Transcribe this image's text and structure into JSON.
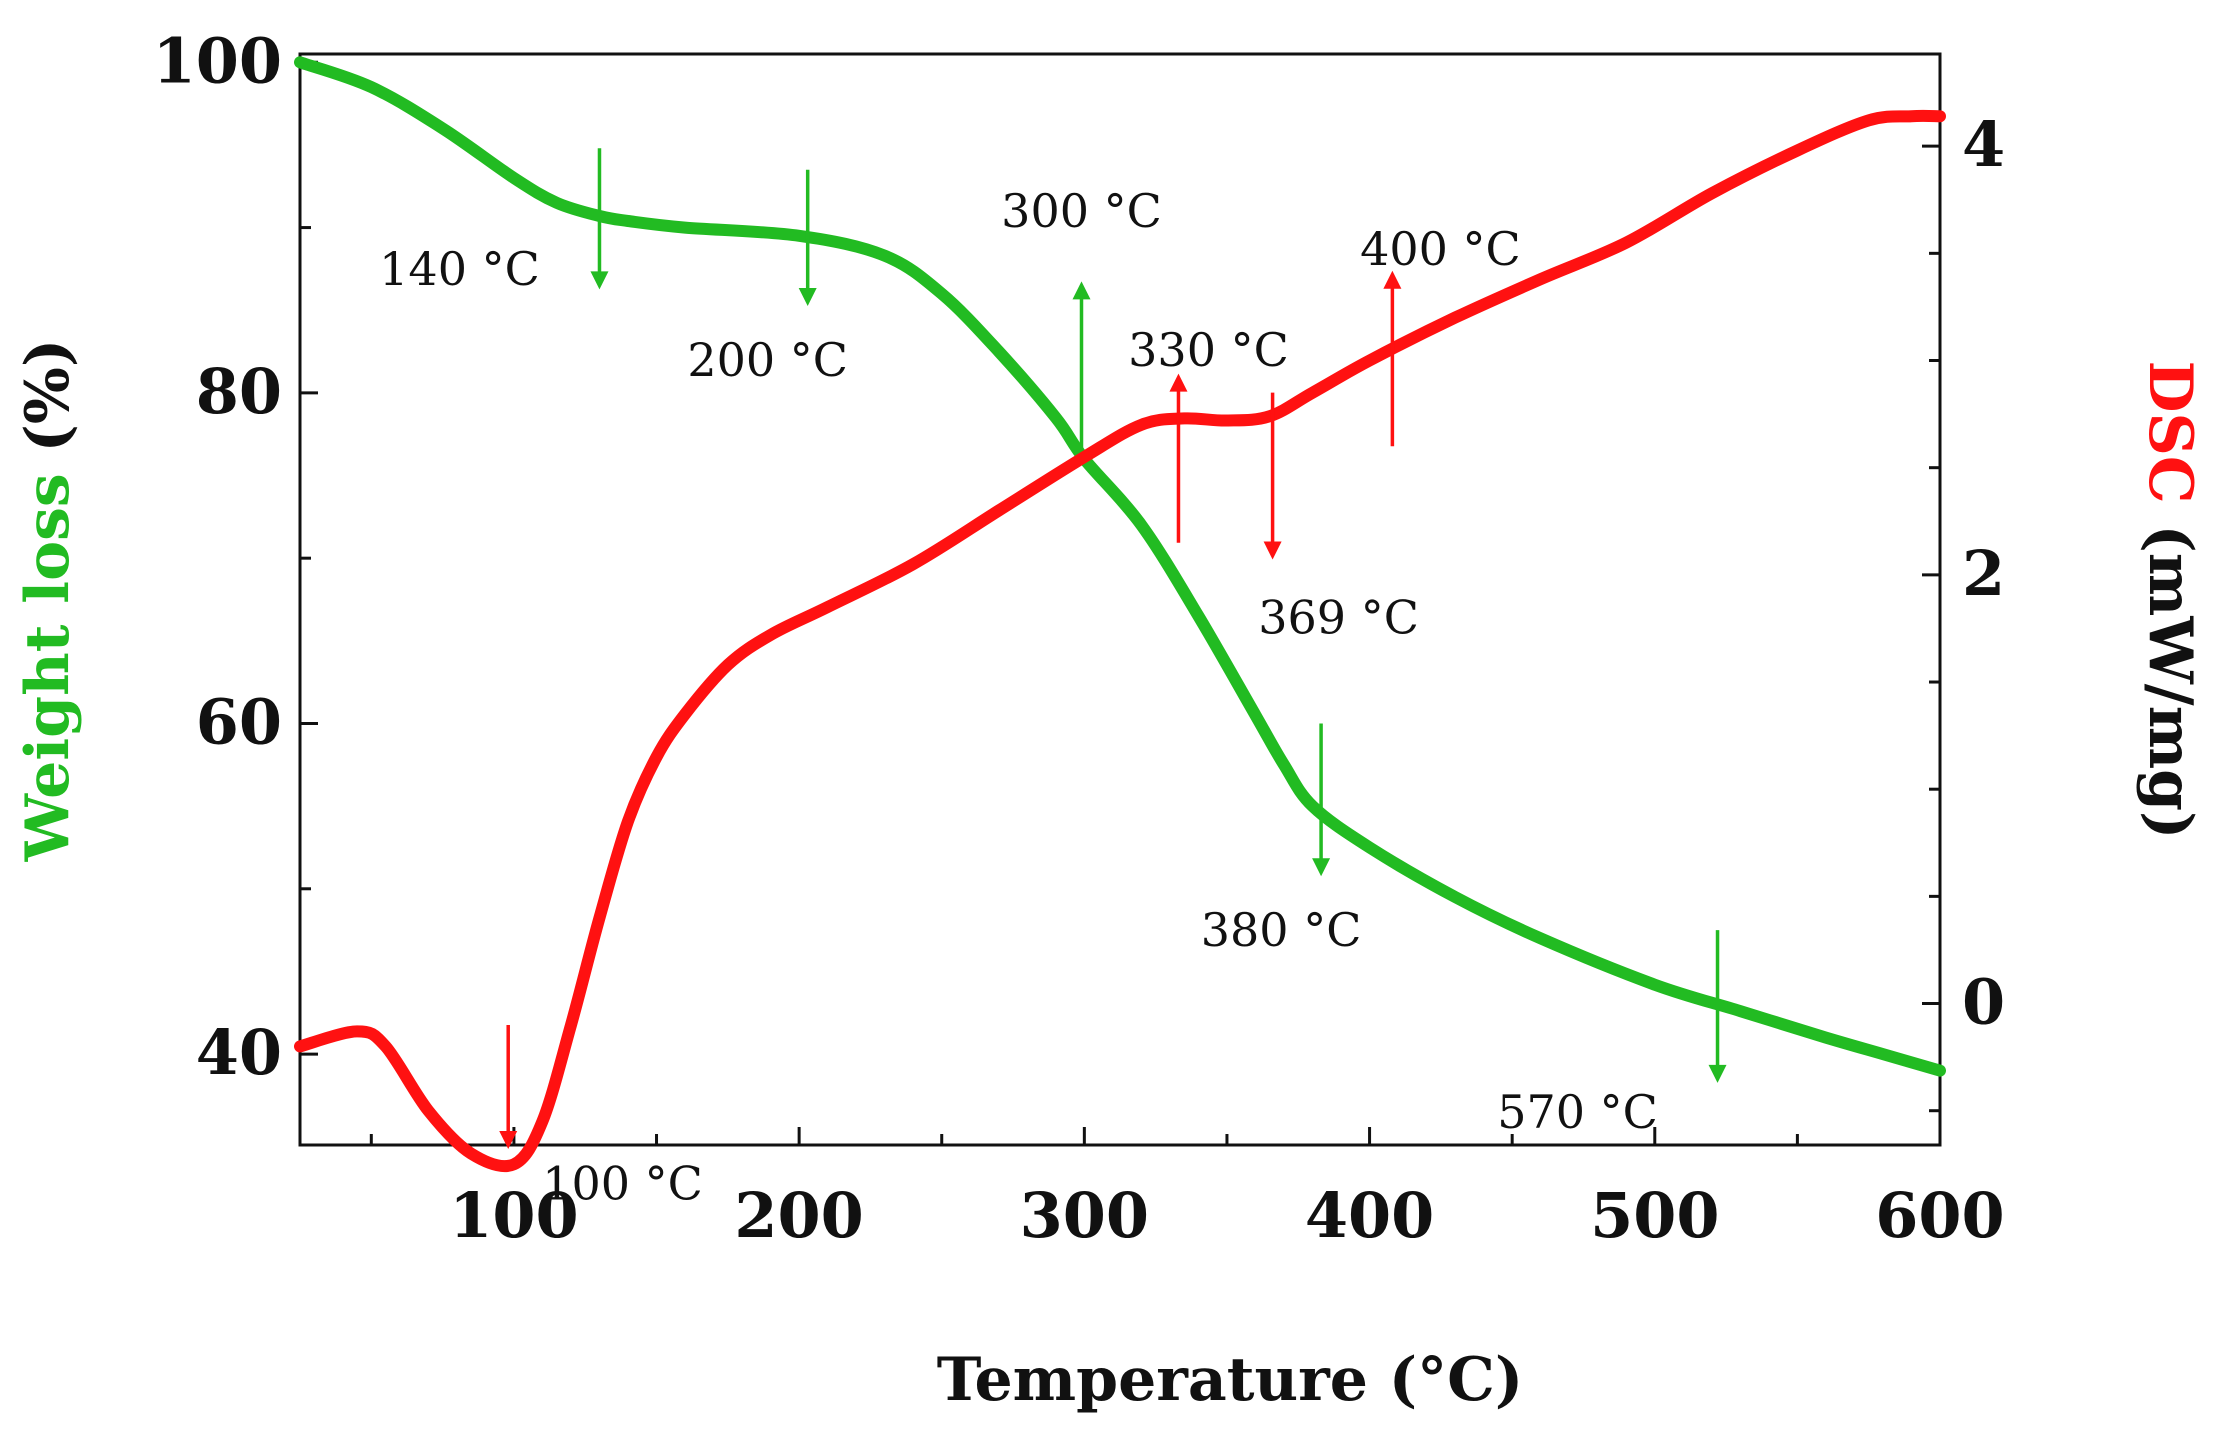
{
  "chart_data": {
    "type": "line",
    "title": "",
    "xlabel": "Temperature (°C)",
    "xlim": [
      25,
      600
    ],
    "x_ticks": [
      100,
      200,
      300,
      400,
      500,
      600
    ],
    "colors": {
      "weight": "#22bb22",
      "dsc": "#ff1111",
      "axis": "#111111"
    },
    "left_axis": {
      "label_prefix": "Weight loss ",
      "label_suffix": "(%)",
      "ylim": [
        34.5,
        100.5
      ],
      "ticks": [
        40,
        60,
        80,
        100
      ]
    },
    "right_axis": {
      "label_prefix": "DSC ",
      "label_suffix": "(mW/mg)",
      "ylim": [
        -0.66,
        4.43
      ],
      "ticks": [
        0,
        2,
        4
      ]
    },
    "series": [
      {
        "name": "Weight loss",
        "axis": "left",
        "color": "#22bb22",
        "x": [
          25,
          50,
          75,
          100,
          115,
          130,
          140,
          160,
          200,
          230,
          250,
          270,
          290,
          300,
          320,
          340,
          360,
          370,
          380,
          400,
          430,
          460,
          500,
          530,
          560,
          580,
          600
        ],
        "y": [
          100,
          98.5,
          96,
          93,
          91.5,
          90.7,
          90.4,
          90.0,
          89.5,
          88.3,
          86.0,
          82.5,
          78.5,
          76.0,
          72.0,
          66.5,
          60.5,
          57.5,
          55.0,
          52.5,
          49.5,
          47.0,
          44.2,
          42.6,
          41.0,
          40.0,
          39.0
        ]
      },
      {
        "name": "DSC",
        "axis": "right",
        "color": "#ff1111",
        "x": [
          25,
          45,
          55,
          70,
          85,
          100,
          110,
          120,
          130,
          140,
          150,
          160,
          175,
          190,
          210,
          240,
          270,
          300,
          320,
          335,
          350,
          365,
          380,
          400,
          430,
          460,
          490,
          520,
          550,
          575,
          590,
          600
        ],
        "y": [
          -0.2,
          -0.13,
          -0.2,
          -0.5,
          -0.7,
          -0.75,
          -0.55,
          -0.1,
          0.4,
          0.85,
          1.15,
          1.35,
          1.58,
          1.72,
          1.85,
          2.05,
          2.3,
          2.55,
          2.7,
          2.73,
          2.72,
          2.74,
          2.85,
          3.0,
          3.2,
          3.38,
          3.55,
          3.78,
          3.98,
          4.12,
          4.14,
          4.14
        ]
      }
    ],
    "annotations": [
      {
        "label": "140 °C",
        "x": 130,
        "series": "weight",
        "dir": "down",
        "color": "#22bb22",
        "from": 94.8,
        "to": 86.5,
        "label_y": 87.5
      },
      {
        "label": "200 °C",
        "x": 203,
        "series": "weight",
        "dir": "down",
        "color": "#22bb22",
        "from": 93.5,
        "to": 85.5,
        "label_y": 82.0
      },
      {
        "label": "300 °C",
        "x": 299,
        "series": "weight",
        "dir": "up",
        "color": "#22bb22",
        "from": 76.5,
        "to": 86.5,
        "label_y": 91.0
      },
      {
        "label": "380 °C",
        "x": 383,
        "series": "weight",
        "dir": "down",
        "color": "#22bb22",
        "from": 60.0,
        "to": 51.0,
        "label_y": 47.5
      },
      {
        "label": "570 °C",
        "x": 522,
        "series": "weight",
        "dir": "down",
        "color": "#22bb22",
        "from": 47.5,
        "to": 38.5,
        "label_y": 36.5
      },
      {
        "label": "330 °C",
        "x": 333,
        "series": "dsc",
        "dir": "up",
        "color": "#ff1111",
        "from": 2.15,
        "to": 2.92,
        "label_y": 3.05
      },
      {
        "label": "369 °C",
        "x": 366,
        "series": "dsc",
        "dir": "down",
        "color": "#ff1111",
        "from": 2.85,
        "to": 2.09,
        "label_y": 1.8
      },
      {
        "label": "400 °C",
        "x": 408,
        "series": "dsc",
        "dir": "up",
        "color": "#ff1111",
        "from": 2.6,
        "to": 3.4,
        "label_y": 3.52
      },
      {
        "label": "100 °C",
        "x": 98,
        "series": "dsc",
        "dir": "down",
        "color": "#ff1111",
        "from": -0.1,
        "to": -0.66,
        "label_y": -0.84
      }
    ]
  }
}
